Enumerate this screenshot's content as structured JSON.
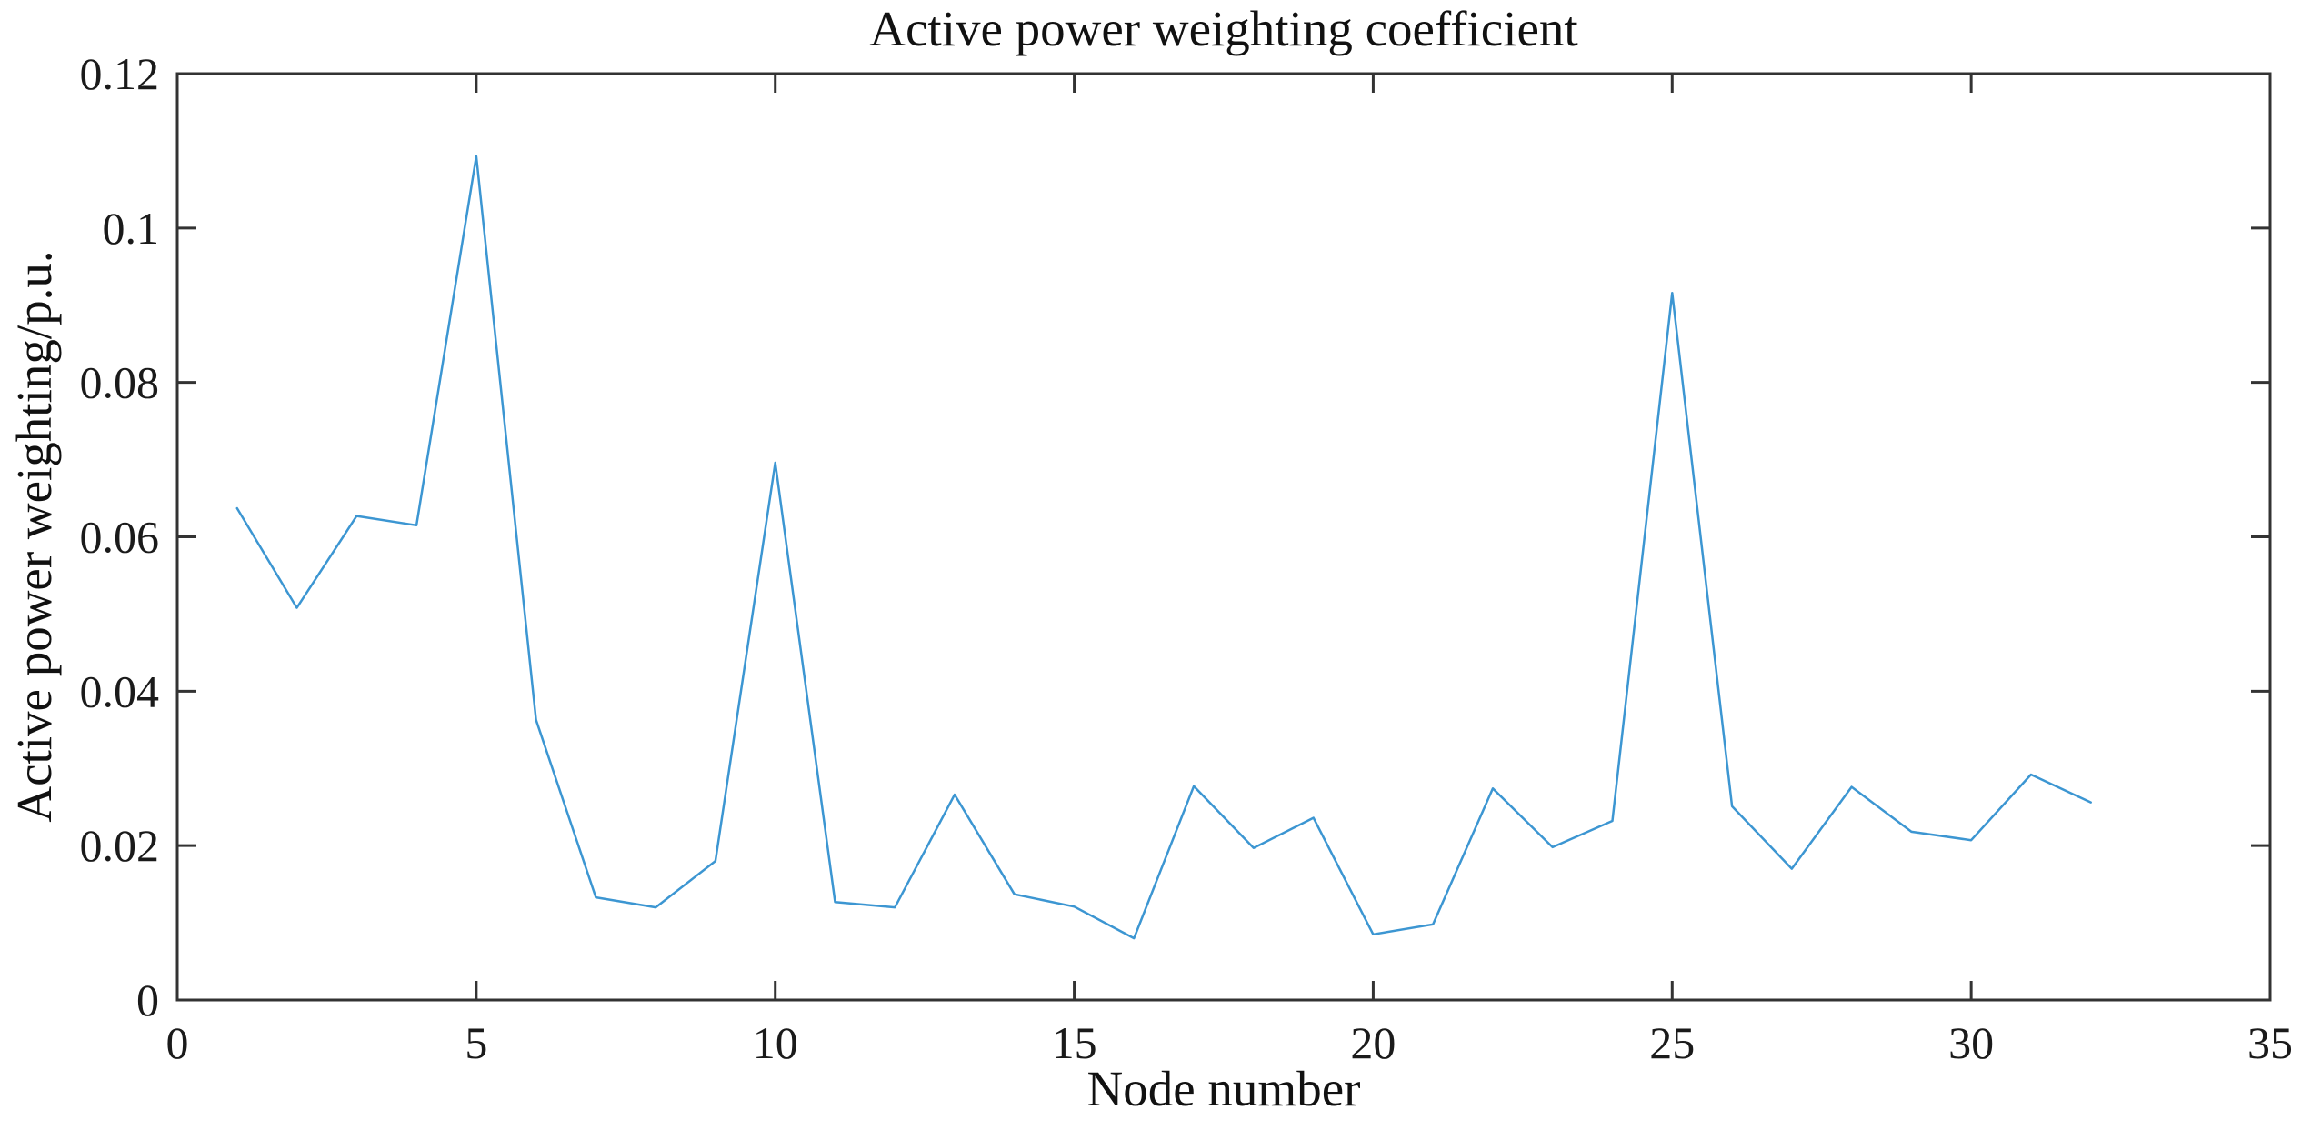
{
  "figure": {
    "kind": "matlab-style line plot",
    "background": "#ffffff"
  },
  "chart_data": {
    "type": "line",
    "title": "Active power weighting coefficient",
    "xlabel": "Node number",
    "ylabel": "Active power weighting/p.u.",
    "x": [
      1,
      2,
      3,
      4,
      5,
      6,
      7,
      8,
      9,
      10,
      11,
      12,
      13,
      14,
      15,
      16,
      17,
      18,
      19,
      20,
      21,
      22,
      23,
      24,
      25,
      26,
      27,
      28,
      29,
      30,
      31,
      32
    ],
    "values": [
      0.0637,
      0.0508,
      0.0627,
      0.0615,
      0.1093,
      0.0363,
      0.0133,
      0.012,
      0.018,
      0.0696,
      0.0127,
      0.012,
      0.0266,
      0.0137,
      0.0121,
      0.008,
      0.0277,
      0.0197,
      0.0236,
      0.0085,
      0.0098,
      0.0274,
      0.0198,
      0.0232,
      0.0916,
      0.0251,
      0.017,
      0.0276,
      0.0218,
      0.0207,
      0.0292,
      0.0256
    ],
    "xlim": [
      0,
      35
    ],
    "ylim": [
      0,
      0.12
    ],
    "xticks": [
      0,
      5,
      10,
      15,
      20,
      25,
      30,
      35
    ],
    "xtick_labels": [
      "0",
      "5",
      "10",
      "15",
      "20",
      "25",
      "30",
      "35"
    ],
    "yticks": [
      0,
      0.02,
      0.04,
      0.06,
      0.08,
      0.1,
      0.12
    ],
    "ytick_labels": [
      "0",
      "0.02",
      "0.04",
      "0.06",
      "0.08",
      "0.1",
      "0.12"
    ],
    "grid": false,
    "legend": null,
    "box": true,
    "tick_direction": "in",
    "line_color": "#3c96d2",
    "axis_color": "#333333",
    "text_color": "#1a1a1a",
    "background": "#ffffff"
  }
}
